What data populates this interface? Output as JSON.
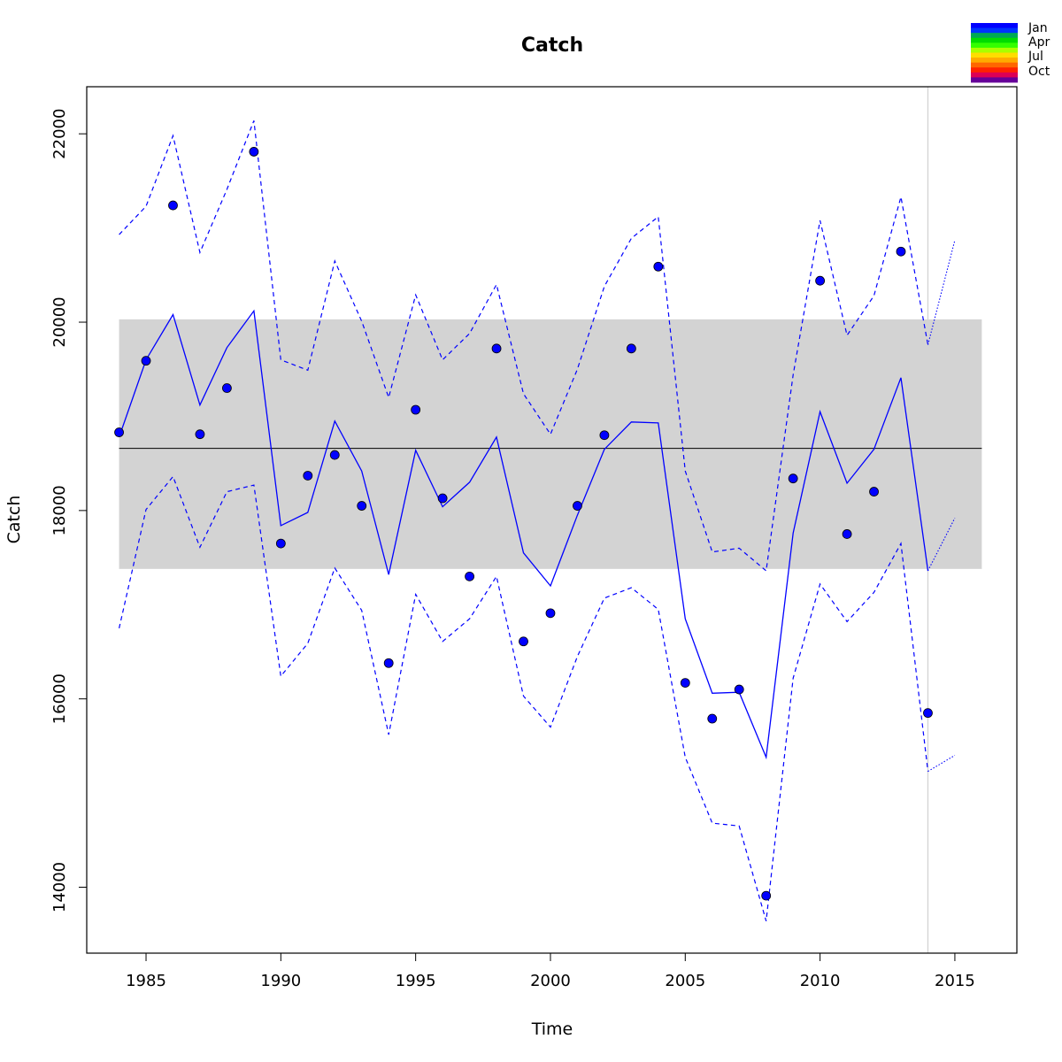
{
  "chart_data": {
    "type": "line",
    "title": "Catch",
    "xlabel": "Time",
    "ylabel": "Catch",
    "xlim": [
      1982.8,
      2017.3
    ],
    "ylim": [
      13300,
      22500
    ],
    "x_ticks": [
      1985,
      1990,
      1995,
      2000,
      2005,
      2010,
      2015
    ],
    "y_ticks": [
      14000,
      16000,
      18000,
      20000,
      22000
    ],
    "grid": false,
    "band": {
      "x": [
        1984,
        2016
      ],
      "y": [
        17380,
        20030
      ],
      "color": "#d3d3d3"
    },
    "mean_line": {
      "x": [
        1984,
        2016
      ],
      "y": 18660,
      "color": "#000000"
    },
    "vline": {
      "x": 2014,
      "color": "#d3d3d3"
    },
    "observed": {
      "x": [
        1984,
        1985,
        1986,
        1987,
        1988,
        1989,
        1990,
        1991,
        1992,
        1993,
        1994,
        1995,
        1996,
        1997,
        1998,
        1999,
        2000,
        2001,
        2002,
        2003,
        2004,
        2005,
        2006,
        2007,
        2008,
        2009,
        2010,
        2011,
        2012,
        2013,
        2014
      ],
      "y": [
        18830,
        19590,
        21240,
        18810,
        19300,
        21810,
        17650,
        18370,
        18590,
        18050,
        16380,
        19070,
        18130,
        17300,
        19720,
        16610,
        16910,
        18050,
        18800,
        19720,
        20590,
        16170,
        15790,
        16100,
        13910,
        18340,
        20440,
        17750,
        18200,
        20750,
        15850
      ],
      "color": "#0000ff"
    },
    "fitted": {
      "x": [
        1984,
        1985,
        1986,
        1987,
        1988,
        1989,
        1990,
        1991,
        1992,
        1993,
        1994,
        1995,
        1996,
        1997,
        1998,
        1999,
        2000,
        2001,
        2002,
        2003,
        2004,
        2005,
        2006,
        2007,
        2008,
        2009,
        2010,
        2011,
        2012,
        2013,
        2014
      ],
      "y": [
        18780,
        19600,
        20080,
        19120,
        19730,
        20120,
        17840,
        17980,
        18950,
        18420,
        17320,
        18640,
        18040,
        18300,
        18780,
        17550,
        17200,
        17950,
        18650,
        18940,
        18930,
        16850,
        16060,
        16070,
        15380,
        17760,
        19050,
        18290,
        18650,
        19410,
        17360
      ],
      "color": "#0000ff"
    },
    "upper": {
      "x": [
        1984,
        1985,
        1986,
        1987,
        1988,
        1989,
        1990,
        1991,
        1992,
        1993,
        1994,
        1995,
        1996,
        1997,
        1998,
        1999,
        2000,
        2001,
        2002,
        2003,
        2004,
        2005,
        2006,
        2007,
        2008,
        2009,
        2010,
        2011,
        2012,
        2013,
        2014
      ],
      "y": [
        20930,
        21230,
        21980,
        20740,
        21410,
        22140,
        19600,
        19490,
        20650,
        20010,
        19200,
        20290,
        19600,
        19880,
        20400,
        19240,
        18810,
        19500,
        20380,
        20890,
        21120,
        18420,
        17560,
        17600,
        17360,
        19440,
        21080,
        19860,
        20280,
        21330,
        19760
      ],
      "color": "#0000ff"
    },
    "lower": {
      "x": [
        1984,
        1985,
        1986,
        1987,
        1988,
        1989,
        1990,
        1991,
        1992,
        1993,
        1994,
        1995,
        1996,
        1997,
        1998,
        1999,
        2000,
        2001,
        2002,
        2003,
        2004,
        2005,
        2006,
        2007,
        2008,
        2009,
        2010,
        2011,
        2012,
        2013,
        2014
      ],
      "y": [
        16750,
        18010,
        18360,
        17610,
        18200,
        18270,
        16240,
        16590,
        17390,
        16940,
        15620,
        17110,
        16610,
        16850,
        17300,
        16030,
        15700,
        16450,
        17070,
        17180,
        16950,
        15380,
        14680,
        14650,
        13640,
        16220,
        17220,
        16820,
        17130,
        17650,
        15230
      ],
      "color": "#0000ff"
    },
    "forecast": {
      "x": [
        2014,
        2015
      ],
      "mean": [
        17360,
        17920
      ],
      "upper": [
        19760,
        20870
      ],
      "lower": [
        15230,
        15400
      ],
      "color": "#0000ff"
    },
    "legend": {
      "position": "top-right",
      "labels": [
        "Jan",
        "Apr",
        "Jul",
        "Oct"
      ],
      "colors": [
        "#0000ff",
        "#0033ff",
        "#00aa55",
        "#00dd00",
        "#33ff00",
        "#aaff00",
        "#ffdd00",
        "#ffaa00",
        "#ff6600",
        "#ff2200",
        "#dd0055",
        "#660099"
      ]
    }
  }
}
